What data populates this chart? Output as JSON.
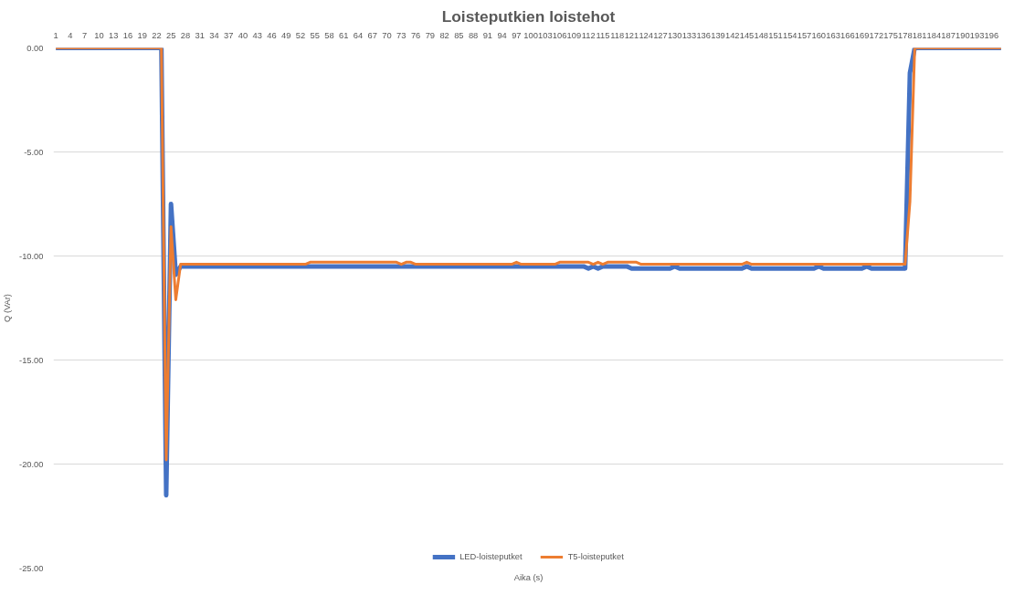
{
  "chart_data": {
    "type": "line",
    "title": "Loisteputkien loistehot",
    "xlabel": "Aika (s)",
    "ylabel": "Q (VAr)",
    "x": [
      1,
      2,
      3,
      4,
      5,
      6,
      7,
      8,
      9,
      10,
      11,
      12,
      13,
      14,
      15,
      16,
      17,
      18,
      19,
      20,
      21,
      22,
      23,
      24,
      25,
      26,
      27,
      28,
      29,
      30,
      31,
      32,
      33,
      34,
      35,
      36,
      37,
      38,
      39,
      40,
      41,
      42,
      43,
      44,
      45,
      46,
      47,
      48,
      49,
      50,
      51,
      52,
      53,
      54,
      55,
      56,
      57,
      58,
      59,
      60,
      61,
      62,
      63,
      64,
      65,
      66,
      67,
      68,
      69,
      70,
      71,
      72,
      73,
      74,
      75,
      76,
      77,
      78,
      79,
      80,
      81,
      82,
      83,
      84,
      85,
      86,
      87,
      88,
      89,
      90,
      91,
      92,
      93,
      94,
      95,
      96,
      97,
      98,
      99,
      100,
      101,
      102,
      103,
      104,
      105,
      106,
      107,
      108,
      109,
      110,
      111,
      112,
      113,
      114,
      115,
      116,
      117,
      118,
      119,
      120,
      121,
      122,
      123,
      124,
      125,
      126,
      127,
      128,
      129,
      130,
      131,
      132,
      133,
      134,
      135,
      136,
      137,
      138,
      139,
      140,
      141,
      142,
      143,
      144,
      145,
      146,
      147,
      148,
      149,
      150,
      151,
      152,
      153,
      154,
      155,
      156,
      157,
      158,
      159,
      160,
      161,
      162,
      163,
      164,
      165,
      166,
      167,
      168,
      169,
      170,
      171,
      172,
      173,
      174,
      175,
      176,
      177,
      178,
      179,
      180,
      181,
      182,
      183,
      184,
      185,
      186,
      187,
      188,
      189,
      190,
      191,
      192,
      193,
      194,
      195,
      196,
      197,
      198
    ],
    "series": [
      {
        "name": "LED-loisteputket",
        "color": "#4472c4",
        "values": [
          0,
          0,
          0,
          0,
          0,
          0,
          0,
          0,
          0,
          0,
          0,
          0,
          0,
          0,
          0,
          0,
          0,
          0,
          0,
          0,
          0,
          0,
          0,
          -21.5,
          -7.5,
          -10.9,
          -10.5,
          -10.5,
          -10.5,
          -10.5,
          -10.5,
          -10.5,
          -10.5,
          -10.5,
          -10.5,
          -10.5,
          -10.5,
          -10.5,
          -10.5,
          -10.5,
          -10.5,
          -10.5,
          -10.5,
          -10.5,
          -10.5,
          -10.5,
          -10.5,
          -10.5,
          -10.5,
          -10.5,
          -10.5,
          -10.5,
          -10.5,
          -10.5,
          -10.5,
          -10.5,
          -10.5,
          -10.5,
          -10.5,
          -10.5,
          -10.5,
          -10.5,
          -10.5,
          -10.5,
          -10.5,
          -10.5,
          -10.5,
          -10.5,
          -10.5,
          -10.5,
          -10.5,
          -10.5,
          -10.5,
          -10.5,
          -10.5,
          -10.5,
          -10.5,
          -10.5,
          -10.5,
          -10.5,
          -10.5,
          -10.5,
          -10.5,
          -10.5,
          -10.5,
          -10.5,
          -10.5,
          -10.5,
          -10.5,
          -10.5,
          -10.5,
          -10.5,
          -10.5,
          -10.5,
          -10.5,
          -10.5,
          -10.5,
          -10.5,
          -10.5,
          -10.5,
          -10.5,
          -10.5,
          -10.5,
          -10.5,
          -10.5,
          -10.5,
          -10.5,
          -10.5,
          -10.5,
          -10.5,
          -10.5,
          -10.6,
          -10.5,
          -10.6,
          -10.5,
          -10.5,
          -10.5,
          -10.5,
          -10.5,
          -10.5,
          -10.6,
          -10.6,
          -10.6,
          -10.6,
          -10.6,
          -10.6,
          -10.6,
          -10.6,
          -10.6,
          -10.5,
          -10.6,
          -10.6,
          -10.6,
          -10.6,
          -10.6,
          -10.6,
          -10.6,
          -10.6,
          -10.6,
          -10.6,
          -10.6,
          -10.6,
          -10.6,
          -10.6,
          -10.5,
          -10.6,
          -10.6,
          -10.6,
          -10.6,
          -10.6,
          -10.6,
          -10.6,
          -10.6,
          -10.6,
          -10.6,
          -10.6,
          -10.6,
          -10.6,
          -10.6,
          -10.5,
          -10.6,
          -10.6,
          -10.6,
          -10.6,
          -10.6,
          -10.6,
          -10.6,
          -10.6,
          -10.6,
          -10.5,
          -10.6,
          -10.6,
          -10.6,
          -10.6,
          -10.6,
          -10.6,
          -10.6,
          -10.6,
          -1.2,
          0,
          0,
          0,
          0,
          0,
          0,
          0,
          0,
          0,
          0,
          0,
          0,
          0,
          0,
          0,
          0,
          0,
          0,
          0
        ]
      },
      {
        "name": "T5-loisteputket",
        "color": "#ed7d31",
        "values": [
          0,
          0,
          0,
          0,
          0,
          0,
          0,
          0,
          0,
          0,
          0,
          0,
          0,
          0,
          0,
          0,
          0,
          0,
          0,
          0,
          0,
          0,
          0,
          -19.8,
          -8.6,
          -12.1,
          -10.4,
          -10.4,
          -10.4,
          -10.4,
          -10.4,
          -10.4,
          -10.4,
          -10.4,
          -10.4,
          -10.4,
          -10.4,
          -10.4,
          -10.4,
          -10.4,
          -10.4,
          -10.4,
          -10.4,
          -10.4,
          -10.4,
          -10.4,
          -10.4,
          -10.4,
          -10.4,
          -10.4,
          -10.4,
          -10.4,
          -10.4,
          -10.3,
          -10.3,
          -10.3,
          -10.3,
          -10.3,
          -10.3,
          -10.3,
          -10.3,
          -10.3,
          -10.3,
          -10.3,
          -10.3,
          -10.3,
          -10.3,
          -10.3,
          -10.3,
          -10.3,
          -10.3,
          -10.3,
          -10.4,
          -10.3,
          -10.3,
          -10.4,
          -10.4,
          -10.4,
          -10.4,
          -10.4,
          -10.4,
          -10.4,
          -10.4,
          -10.4,
          -10.4,
          -10.4,
          -10.4,
          -10.4,
          -10.4,
          -10.4,
          -10.4,
          -10.4,
          -10.4,
          -10.4,
          -10.4,
          -10.4,
          -10.3,
          -10.4,
          -10.4,
          -10.4,
          -10.4,
          -10.4,
          -10.4,
          -10.4,
          -10.4,
          -10.3,
          -10.3,
          -10.3,
          -10.3,
          -10.3,
          -10.3,
          -10.3,
          -10.4,
          -10.3,
          -10.4,
          -10.3,
          -10.3,
          -10.3,
          -10.3,
          -10.3,
          -10.3,
          -10.3,
          -10.4,
          -10.4,
          -10.4,
          -10.4,
          -10.4,
          -10.4,
          -10.4,
          -10.4,
          -10.4,
          -10.4,
          -10.4,
          -10.4,
          -10.4,
          -10.4,
          -10.4,
          -10.4,
          -10.4,
          -10.4,
          -10.4,
          -10.4,
          -10.4,
          -10.4,
          -10.3,
          -10.4,
          -10.4,
          -10.4,
          -10.4,
          -10.4,
          -10.4,
          -10.4,
          -10.4,
          -10.4,
          -10.4,
          -10.4,
          -10.4,
          -10.4,
          -10.4,
          -10.4,
          -10.4,
          -10.4,
          -10.4,
          -10.4,
          -10.4,
          -10.4,
          -10.4,
          -10.4,
          -10.4,
          -10.4,
          -10.4,
          -10.4,
          -10.4,
          -10.4,
          -10.4,
          -10.4,
          -10.4,
          -10.4,
          -7.4,
          0,
          0,
          0,
          0,
          0,
          0,
          0,
          0,
          0,
          0,
          0,
          0,
          0,
          0,
          0,
          0,
          0,
          0,
          0
        ]
      }
    ],
    "xlim": [
      0.5,
      198.5
    ],
    "xticks": [
      1,
      4,
      7,
      10,
      13,
      16,
      19,
      22,
      25,
      28,
      31,
      34,
      37,
      40,
      43,
      46,
      49,
      52,
      55,
      58,
      61,
      64,
      67,
      70,
      73,
      76,
      79,
      82,
      85,
      88,
      91,
      94,
      97,
      100,
      103,
      106,
      109,
      112,
      115,
      118,
      121,
      124,
      127,
      130,
      133,
      136,
      139,
      142,
      145,
      148,
      151,
      154,
      157,
      160,
      163,
      166,
      169,
      172,
      175,
      178,
      181,
      184,
      187,
      190,
      193,
      196
    ],
    "ylim": [
      -25,
      0
    ],
    "yticks": [
      {
        "value": 0,
        "label": "0.00"
      },
      {
        "value": -5,
        "label": "-5.00"
      },
      {
        "value": -10,
        "label": "-10.00"
      },
      {
        "value": -15,
        "label": "-15.00"
      },
      {
        "value": -20,
        "label": "-20.00"
      },
      {
        "value": -25,
        "label": "-25.00"
      }
    ],
    "grid": "y",
    "legend": "bottom",
    "marker": "none",
    "line_style": "solid"
  }
}
